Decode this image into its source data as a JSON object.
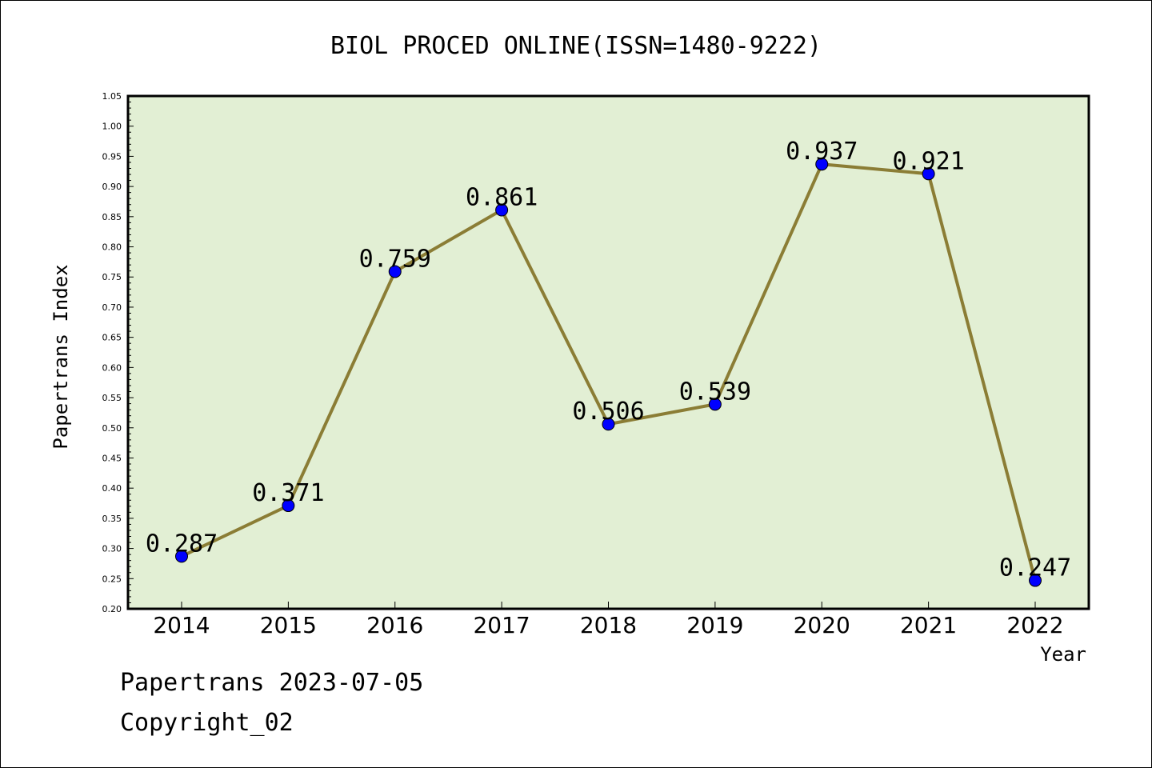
{
  "chart_data": {
    "type": "line",
    "title": "BIOL PROCED ONLINE(ISSN=1480-9222)",
    "xlabel": "Year",
    "ylabel": "Papertrans Index",
    "categories": [
      "2014",
      "2015",
      "2016",
      "2017",
      "2018",
      "2019",
      "2020",
      "2021",
      "2022"
    ],
    "values": [
      0.287,
      0.371,
      0.759,
      0.861,
      0.506,
      0.539,
      0.937,
      0.921,
      0.247
    ],
    "data_labels": [
      "0.287",
      "0.371",
      "0.759",
      "0.861",
      "0.506",
      "0.539",
      "0.937",
      "0.921",
      "0.247"
    ],
    "ylim": [
      0.2,
      1.05
    ],
    "yticks": [
      "0.20",
      "0.25",
      "0.30",
      "0.35",
      "0.40",
      "0.45",
      "0.50",
      "0.55",
      "0.60",
      "0.65",
      "0.70",
      "0.75",
      "0.80",
      "0.85",
      "0.90",
      "0.95",
      "1.00",
      "1.05"
    ],
    "grid": false,
    "colors": {
      "plot_background": "#e2efd4",
      "line": "#8b7d35",
      "marker": "#0000ff"
    }
  },
  "footer": {
    "line1": "Papertrans 2023-07-05",
    "line2": "Copyright_02"
  }
}
